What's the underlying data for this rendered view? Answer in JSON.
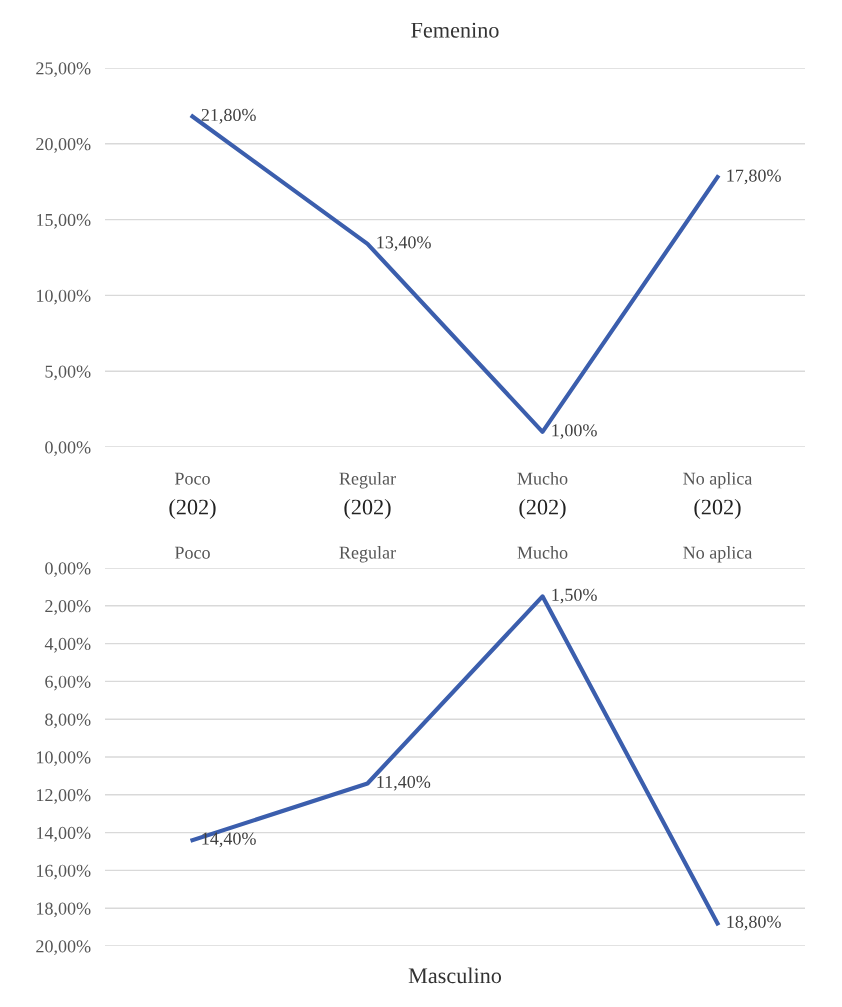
{
  "chart_data": [
    {
      "type": "line",
      "title": "Femenino",
      "categories": [
        "Poco",
        "Regular",
        "Mucho",
        "No aplica"
      ],
      "series": [
        {
          "color": "#3b5ead",
          "values": [
            21.8,
            13.4,
            1.0,
            17.8
          ],
          "value_labels": [
            "21,80%",
            "13,40%",
            "1,00%",
            "17,80%"
          ]
        }
      ],
      "ylim": [
        0,
        25
      ],
      "yticks": [
        {
          "value": 0,
          "label": "0,00%"
        },
        {
          "value": 5,
          "label": "5,00%"
        },
        {
          "value": 10,
          "label": "10,00%"
        },
        {
          "value": 15,
          "label": "15,00%"
        },
        {
          "value": 20,
          "label": "20,00%"
        },
        {
          "value": 25,
          "label": "25,00%"
        }
      ],
      "grid": "y",
      "annotations": [
        "(202)",
        "(202)",
        "(202)",
        "(202)"
      ]
    },
    {
      "type": "line",
      "title": "Masculino",
      "categories": [
        "Poco",
        "Regular",
        "Mucho",
        "No aplica"
      ],
      "series": [
        {
          "color": "#3b5ead",
          "values": [
            14.4,
            11.4,
            1.5,
            18.8
          ],
          "value_labels": [
            "14,40%",
            "11,40%",
            "1,50%",
            "18,80%"
          ]
        }
      ],
      "ylim": [
        20,
        0
      ],
      "yticks": [
        {
          "value": 0,
          "label": "0,00%"
        },
        {
          "value": 2,
          "label": "2,00%"
        },
        {
          "value": 4,
          "label": "4,00%"
        },
        {
          "value": 6,
          "label": "6,00%"
        },
        {
          "value": 8,
          "label": "8,00%"
        },
        {
          "value": 10,
          "label": "10,00%"
        },
        {
          "value": 12,
          "label": "12,00%"
        },
        {
          "value": 14,
          "label": "14,00%"
        },
        {
          "value": 16,
          "label": "16,00%"
        },
        {
          "value": 18,
          "label": "18,00%"
        },
        {
          "value": 20,
          "label": "20,00%"
        }
      ],
      "grid": "y"
    }
  ]
}
